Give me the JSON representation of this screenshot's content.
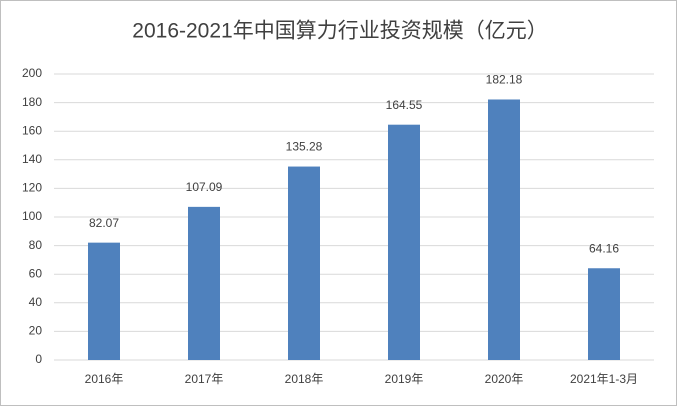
{
  "chart_data": {
    "type": "bar",
    "title": "2016-2021年中国算力行业投资规模（亿元）",
    "categories": [
      "2016年",
      "2017年",
      "2018年",
      "2019年",
      "2020年",
      "2021年1-3月"
    ],
    "values": [
      82.07,
      107.09,
      135.28,
      164.55,
      182.18,
      64.16
    ],
    "color": "#4f81bd",
    "ylim": [
      0,
      200
    ],
    "yticks": [
      0,
      20,
      40,
      60,
      80,
      100,
      120,
      140,
      160,
      180,
      200
    ],
    "grid": true
  }
}
